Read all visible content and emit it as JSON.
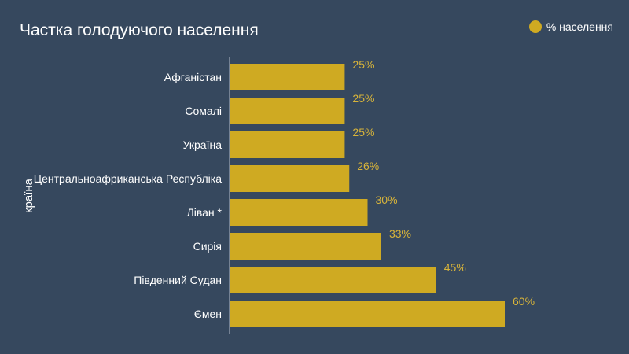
{
  "chart_data": {
    "type": "bar",
    "orientation": "horizontal",
    "title": "Частка голодуючого населення",
    "ylabel": "країна",
    "xlabel": "",
    "categories": [
      "Афганістан",
      "Сомалі",
      "Україна",
      "Центральноафриканська Республіка",
      "Ліван *",
      "Сирія",
      "Південний Судан",
      "Ємен"
    ],
    "series": [
      {
        "name": "% населення",
        "values": [
          25,
          25,
          25,
          26,
          30,
          33,
          45,
          60
        ],
        "labels": [
          "25%",
          "25%",
          "25%",
          "26%",
          "30%",
          "33%",
          "45%",
          "60%"
        ]
      }
    ],
    "xlim": [
      0,
      60
    ],
    "grid": false,
    "legend": "top-right",
    "colors": {
      "background": "#36485e",
      "bar": "#cfaa22",
      "value_label": "#d8b43a",
      "text": "#ffffff",
      "axis": "#8a96a6"
    }
  }
}
